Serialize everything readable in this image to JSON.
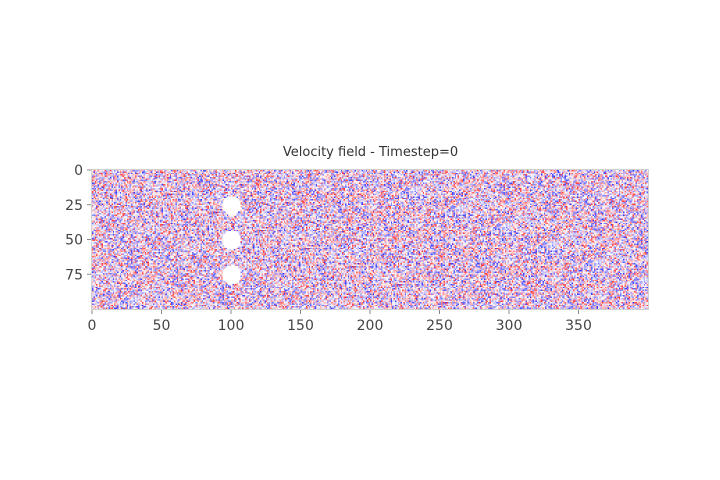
{
  "chart_data": {
    "type": "heatmap",
    "title": "Velocity field - Timestep=0",
    "xlabel": "",
    "ylabel": "",
    "x_range": [
      0,
      400
    ],
    "y_range": [
      0,
      100
    ],
    "y_axis_inverted": true,
    "x_ticks": [
      0,
      50,
      100,
      150,
      200,
      250,
      300,
      350
    ],
    "y_ticks": [
      0,
      25,
      50,
      75
    ],
    "colormap": "bwr",
    "colors": {
      "negative": "#3b3bff",
      "neutral": "#ffffff",
      "positive": "#ff3b3b"
    },
    "field_description_values": "random noise",
    "obstacles": [
      {
        "cx": 100,
        "cy": 25,
        "r": 7
      },
      {
        "cx": 100,
        "cy": 50,
        "r": 7
      },
      {
        "cx": 100,
        "cy": 75,
        "r": 7
      }
    ],
    "grid": false
  }
}
